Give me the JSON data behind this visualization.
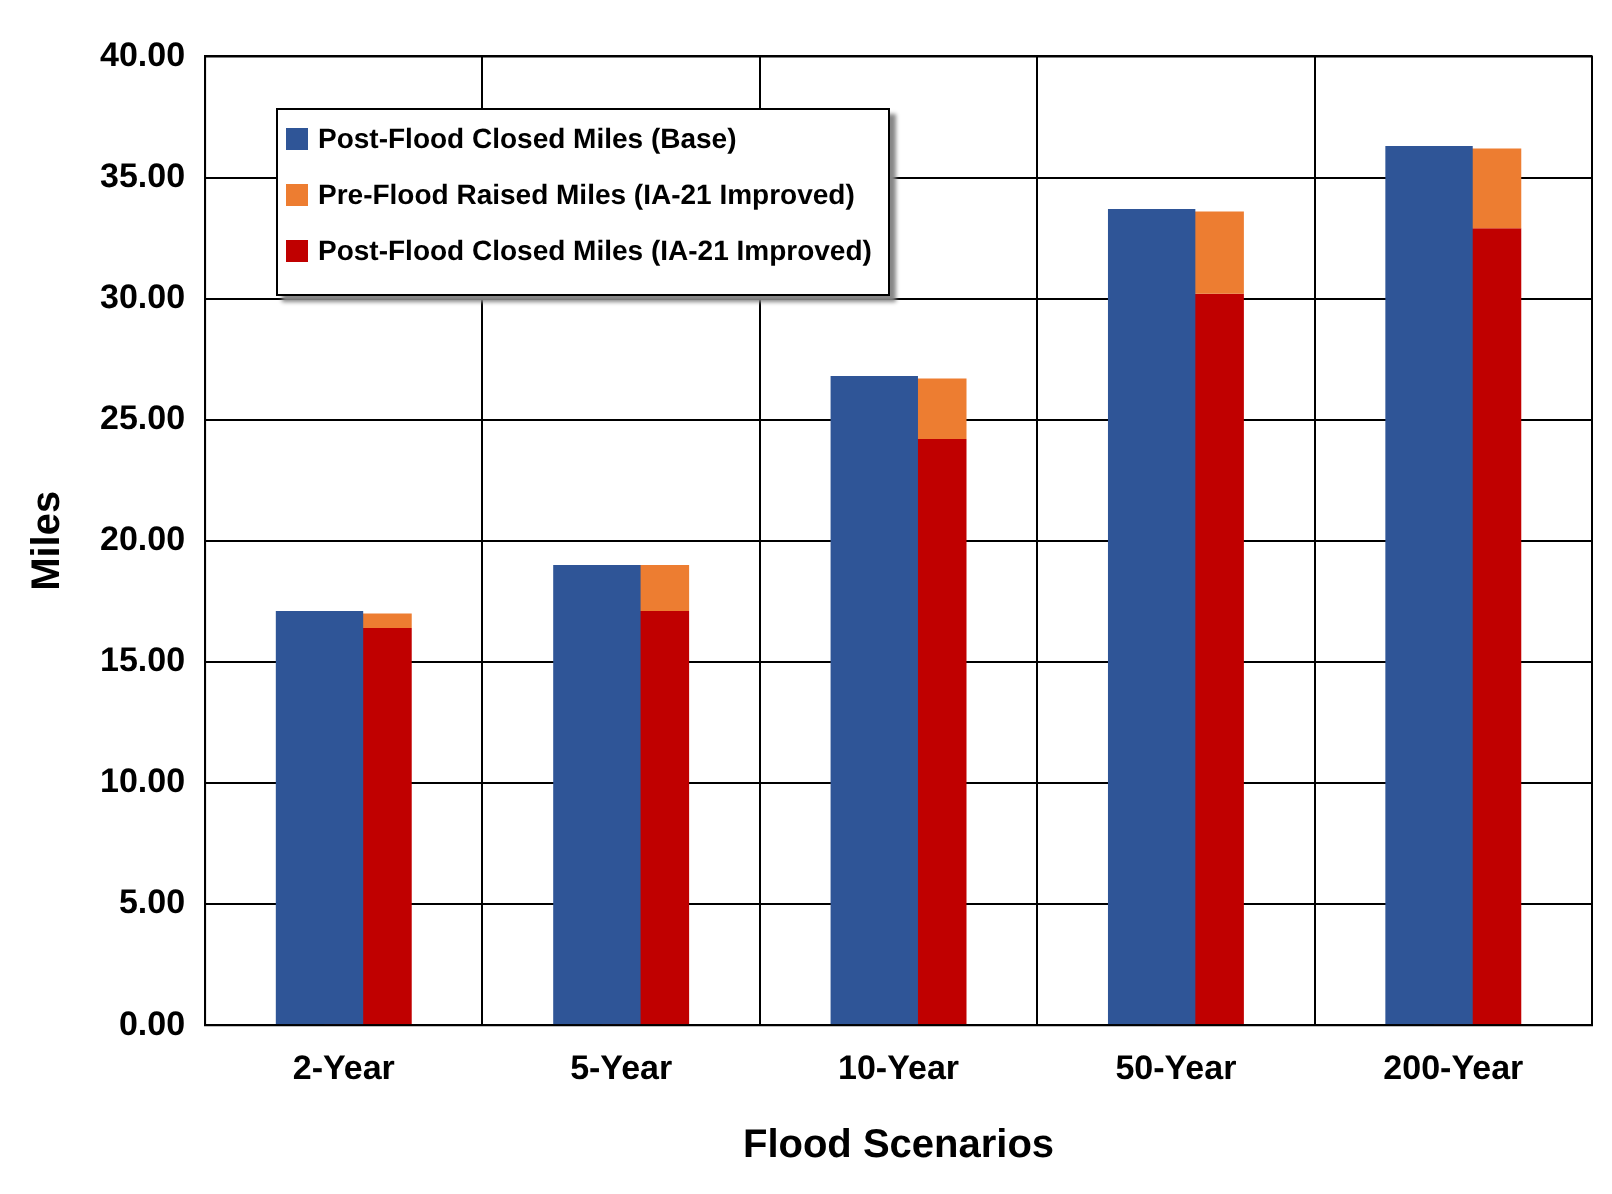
{
  "chart_data": {
    "type": "bar",
    "xlabel": "Flood Scenarios",
    "ylabel": "Miles",
    "categories": [
      "2-Year",
      "5-Year",
      "10-Year",
      "50-Year",
      "200-Year"
    ],
    "series": [
      {
        "name": "Post-Flood Closed Miles (Base)",
        "color": "#2f5597",
        "values": [
          17.1,
          19.0,
          26.8,
          33.7,
          36.3
        ]
      },
      {
        "name": "Pre-Flood Raised Miles (IA-21 Improved)",
        "color": "#ed7d31",
        "base": [
          16.4,
          17.1,
          24.2,
          30.2,
          32.9
        ],
        "values": [
          0.6,
          1.9,
          2.5,
          3.4,
          3.3
        ]
      },
      {
        "name": "Post-Flood Closed Miles (IA-21 Improved)",
        "color": "#c00000",
        "values": [
          16.4,
          17.1,
          24.2,
          30.2,
          32.9
        ]
      }
    ],
    "ylim": [
      0,
      40
    ],
    "yticks": [
      {
        "value": 0,
        "label": "0.00"
      },
      {
        "value": 5,
        "label": "5.00"
      },
      {
        "value": 10,
        "label": "10.00"
      },
      {
        "value": 15,
        "label": "15.00"
      },
      {
        "value": 20,
        "label": "20.00"
      },
      {
        "value": 25,
        "label": "25.00"
      },
      {
        "value": 30,
        "label": "30.00"
      },
      {
        "value": 35,
        "label": "35.00"
      },
      {
        "value": 40,
        "label": "40.00"
      }
    ],
    "grid": true,
    "legend": "top left"
  }
}
